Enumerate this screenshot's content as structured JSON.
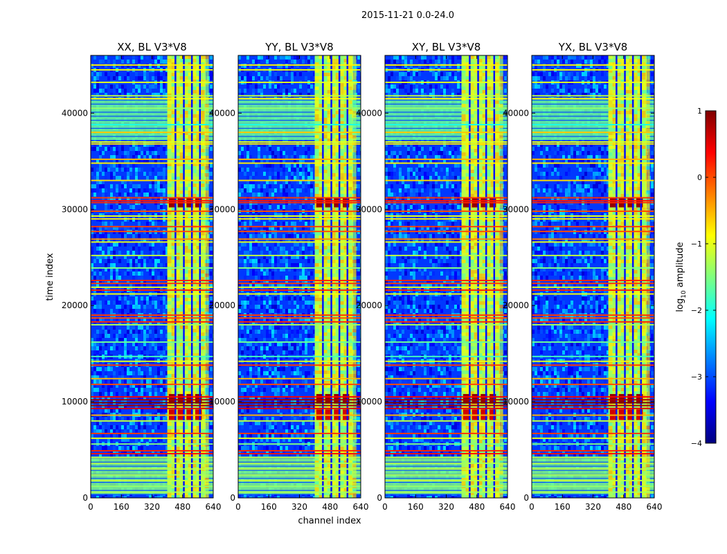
{
  "chart_data": {
    "type": "heatmap",
    "title": "2015-11-21 0.0-24.0",
    "xlabel": "channel index",
    "ylabel": "time index",
    "xlim": [
      0,
      640
    ],
    "ylim": [
      0,
      46000
    ],
    "xticks": [
      0,
      160,
      320,
      480,
      640
    ],
    "yticks": [
      0,
      10000,
      20000,
      30000,
      40000
    ],
    "panels": [
      {
        "title": "XX, BL V3*V8",
        "band_channels": [
          400,
          600
        ],
        "edge_glow": true
      },
      {
        "title": "YY, BL V3*V8",
        "band_channels": [
          400,
          600
        ],
        "edge_glow": true
      },
      {
        "title": "XY, BL V3*V8",
        "band_channels": [
          400,
          600
        ],
        "edge_glow": true
      },
      {
        "title": "YX, BL V3*V8",
        "band_channels": [
          400,
          600
        ],
        "edge_glow": true
      }
    ],
    "colorbar": {
      "label": "log10 amplitude",
      "label_base": "log",
      "label_sub": "10",
      "label_rest": " amplitude",
      "min": -4,
      "max": 1,
      "ticks": [
        1,
        0,
        -1,
        -2,
        -3,
        -4
      ],
      "tick_labels": [
        "1",
        "0",
        "−1",
        "−2",
        "−3",
        "−4"
      ],
      "colormap": "jet",
      "stops": [
        "#00007f",
        "#0000ff",
        "#007fff",
        "#00ffff",
        "#7fff7f",
        "#ffff00",
        "#ff7f00",
        "#ff0000",
        "#7f0000"
      ]
    },
    "bright_rows": [
      {
        "t": 45000,
        "v": -0.8
      },
      {
        "t": 44500,
        "v": -0.9
      },
      {
        "t": 43200,
        "v": -1.0
      },
      {
        "t": 41800,
        "v": -1.2
      },
      {
        "t": 41500,
        "v": -0.9
      },
      {
        "t": 40500,
        "v": -1.4
      },
      {
        "t": 38800,
        "v": -2.0
      },
      {
        "t": 38000,
        "v": -0.6
      },
      {
        "t": 37000,
        "v": -1.0
      },
      {
        "t": 36800,
        "v": -0.8
      },
      {
        "t": 35200,
        "v": -0.5
      },
      {
        "t": 34800,
        "v": -0.8
      },
      {
        "t": 33000,
        "v": -0.7
      },
      {
        "t": 31200,
        "v": 0.1
      },
      {
        "t": 30900,
        "v": 0.3
      },
      {
        "t": 30700,
        "v": 0.2
      },
      {
        "t": 29800,
        "v": 0.0
      },
      {
        "t": 29300,
        "v": -1.0
      },
      {
        "t": 29000,
        "v": -0.8
      },
      {
        "t": 28200,
        "v": 0.1
      },
      {
        "t": 27700,
        "v": 0.0
      },
      {
        "t": 26900,
        "v": -0.3
      },
      {
        "t": 26600,
        "v": -1.0
      },
      {
        "t": 25200,
        "v": -1.2
      },
      {
        "t": 23900,
        "v": -1.5
      },
      {
        "t": 22600,
        "v": 0.2
      },
      {
        "t": 22300,
        "v": 0.1
      },
      {
        "t": 21900,
        "v": -1.0
      },
      {
        "t": 21600,
        "v": 0.2
      },
      {
        "t": 21200,
        "v": -0.9
      },
      {
        "t": 19000,
        "v": 0.1
      },
      {
        "t": 18700,
        "v": 0.0
      },
      {
        "t": 18300,
        "v": 0.2
      },
      {
        "t": 18000,
        "v": -1.3
      },
      {
        "t": 16200,
        "v": -1.6
      },
      {
        "t": 14700,
        "v": -1.8
      },
      {
        "t": 14200,
        "v": -1.0
      },
      {
        "t": 13800,
        "v": 0.1
      },
      {
        "t": 12400,
        "v": -0.5
      },
      {
        "t": 11800,
        "v": 0.0
      },
      {
        "t": 10500,
        "v": 0.4
      },
      {
        "t": 10200,
        "v": 0.8
      },
      {
        "t": 9900,
        "v": 1.0
      },
      {
        "t": 9600,
        "v": 0.8
      },
      {
        "t": 9300,
        "v": 0.5
      },
      {
        "t": 8600,
        "v": -0.5
      },
      {
        "t": 8000,
        "v": -1.2
      },
      {
        "t": 6700,
        "v": 0.1
      },
      {
        "t": 6200,
        "v": -1.0
      },
      {
        "t": 5600,
        "v": -1.5
      },
      {
        "t": 4900,
        "v": 0.2
      },
      {
        "t": 4600,
        "v": 0.3
      },
      {
        "t": 4200,
        "v": -1.2
      },
      {
        "t": 3600,
        "v": -1.3
      },
      {
        "t": 3000,
        "v": -1.2
      },
      {
        "t": 2400,
        "v": -1.3
      },
      {
        "t": 1800,
        "v": -1.2
      },
      {
        "t": 1200,
        "v": -1.4
      },
      {
        "t": 600,
        "v": -1.3
      }
    ],
    "green_blocks": [
      {
        "t0": 400,
        "t1": 4300,
        "v": -1.5
      },
      {
        "t0": 37200,
        "t1": 41600,
        "v": -1.6
      }
    ],
    "band_hot_ranges": [
      {
        "t0": 30200,
        "t1": 31200,
        "v": 0.9
      },
      {
        "t0": 9800,
        "t1": 10800,
        "v": 0.9
      },
      {
        "t0": 8100,
        "t1": 9200,
        "v": 0.6
      }
    ]
  }
}
